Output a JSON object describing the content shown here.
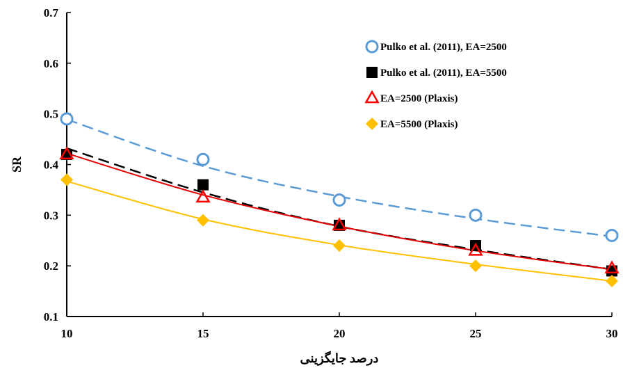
{
  "chart_data": {
    "type": "scatter",
    "title": "",
    "xlabel": "درصد جایگزینی",
    "ylabel": "SR",
    "xlim": [
      10,
      30
    ],
    "ylim": [
      0.1,
      0.7
    ],
    "xticks": [
      10,
      15,
      20,
      25,
      30
    ],
    "yticks": [
      0.1,
      0.2,
      0.3,
      0.4,
      0.5,
      0.6,
      0.7
    ],
    "grid": false,
    "legend_position": "top-right",
    "series": [
      {
        "name": "Pulko et al. (2011), EA=2500",
        "marker": "circle-open",
        "color": "#5b9bd5",
        "x": [
          10,
          15,
          20,
          25,
          30
        ],
        "y": [
          0.49,
          0.41,
          0.33,
          0.3,
          0.26
        ],
        "trend": {
          "style": "dashed",
          "color": "#5b9bd5",
          "y": [
            0.489,
            0.397,
            0.337,
            0.293,
            0.258
          ]
        }
      },
      {
        "name": "Pulko et al. (2011), EA=5500",
        "marker": "square-filled",
        "color": "#000000",
        "x": [
          10,
          15,
          20,
          25,
          30
        ],
        "y": [
          0.42,
          0.36,
          0.28,
          0.24,
          0.19
        ],
        "trend": {
          "style": "dashed",
          "color": "#000000",
          "y": [
            0.432,
            0.345,
            0.278,
            0.232,
            0.193
          ]
        }
      },
      {
        "name": "EA=2500 (Plaxis)",
        "marker": "triangle-open",
        "color": "#ff0000",
        "x": [
          10,
          15,
          20,
          25,
          30
        ],
        "y": [
          0.42,
          0.335,
          0.28,
          0.23,
          0.195
        ],
        "trend": {
          "style": "solid",
          "color": "#e60000",
          "y": [
            0.422,
            0.34,
            0.278,
            0.23,
            0.193
          ]
        }
      },
      {
        "name": "EA=5500 (Plaxis)",
        "marker": "diamond-filled",
        "color": "#ffc000",
        "x": [
          10,
          15,
          20,
          25,
          30
        ],
        "y": [
          0.37,
          0.29,
          0.24,
          0.2,
          0.17
        ],
        "trend": {
          "style": "solid",
          "color": "#ffc000",
          "y": [
            0.367,
            0.292,
            0.241,
            0.203,
            0.17
          ]
        }
      }
    ]
  }
}
